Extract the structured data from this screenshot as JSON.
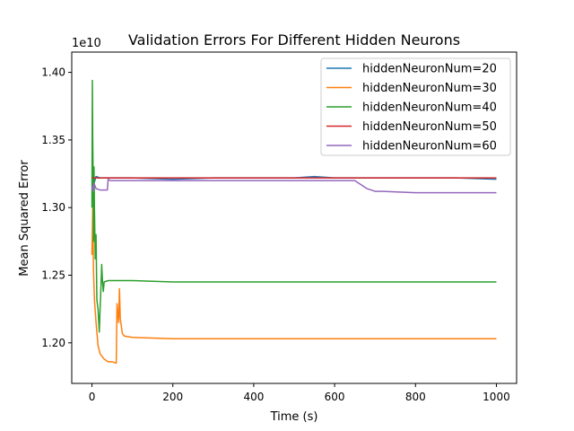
{
  "chart_data": {
    "type": "line",
    "title": "Validation Errors For Different Hidden Neurons",
    "xlabel": "Time (s)",
    "ylabel": "Mean Squared Error",
    "y_offset_label": "1e10",
    "xlim": [
      -50,
      1050
    ],
    "ylim": [
      1.17,
      1.415
    ],
    "x_ticks": [
      0,
      200,
      400,
      600,
      800,
      1000
    ],
    "x_tick_labels": [
      "0",
      "200",
      "400",
      "600",
      "800",
      "1000"
    ],
    "y_ticks": [
      1.2,
      1.25,
      1.3,
      1.35,
      1.4
    ],
    "y_tick_labels": [
      "1.20",
      "1.25",
      "1.30",
      "1.35",
      "1.40"
    ],
    "grid": false,
    "legend_position": "top-right",
    "series": [
      {
        "name": "hiddenNeuronNum=20",
        "color": "#1f77b4",
        "x": [
          0,
          5,
          10,
          20,
          40,
          100,
          200,
          300,
          400,
          500,
          550,
          600,
          700,
          800,
          900,
          1000
        ],
        "y": [
          1.322,
          1.318,
          1.323,
          1.322,
          1.322,
          1.322,
          1.321,
          1.322,
          1.322,
          1.322,
          1.323,
          1.322,
          1.322,
          1.322,
          1.322,
          1.321
        ]
      },
      {
        "name": "hiddenNeuronNum=30",
        "color": "#ff7f0e",
        "x": [
          0,
          2,
          4,
          6,
          10,
          15,
          20,
          30,
          40,
          50,
          60,
          62,
          64,
          66,
          68,
          70,
          75,
          80,
          100,
          200,
          400,
          600,
          800,
          1000
        ],
        "y": [
          1.265,
          1.3,
          1.252,
          1.232,
          1.215,
          1.198,
          1.192,
          1.188,
          1.186,
          1.186,
          1.185,
          1.229,
          1.222,
          1.215,
          1.24,
          1.218,
          1.207,
          1.205,
          1.204,
          1.203,
          1.203,
          1.203,
          1.203,
          1.203
        ]
      },
      {
        "name": "hiddenNeuronNum=40",
        "color": "#2ca02c",
        "x": [
          0,
          1,
          2,
          3,
          4,
          5,
          6,
          8,
          10,
          12,
          15,
          18,
          20,
          22,
          24,
          26,
          28,
          30,
          40,
          60,
          100,
          200,
          400,
          600,
          800,
          1000
        ],
        "y": [
          1.3,
          1.394,
          1.35,
          1.32,
          1.275,
          1.33,
          1.3,
          1.262,
          1.28,
          1.232,
          1.225,
          1.208,
          1.225,
          1.24,
          1.258,
          1.245,
          1.238,
          1.245,
          1.246,
          1.246,
          1.246,
          1.245,
          1.245,
          1.245,
          1.245,
          1.245
        ]
      },
      {
        "name": "hiddenNeuronNum=50",
        "color": "#d62728",
        "x": [
          0,
          10,
          20,
          40,
          100,
          200,
          300,
          400,
          500,
          600,
          700,
          800,
          900,
          1000
        ],
        "y": [
          1.322,
          1.322,
          1.322,
          1.322,
          1.322,
          1.322,
          1.322,
          1.322,
          1.322,
          1.322,
          1.322,
          1.322,
          1.322,
          1.322
        ]
      },
      {
        "name": "hiddenNeuronNum=60",
        "color": "#9467bd",
        "x": [
          0,
          3,
          5,
          10,
          20,
          30,
          38,
          40,
          45,
          60,
          100,
          200,
          300,
          400,
          500,
          600,
          640,
          650,
          660,
          670,
          680,
          700,
          720,
          800,
          900,
          1000
        ],
        "y": [
          1.316,
          1.312,
          1.318,
          1.314,
          1.313,
          1.313,
          1.313,
          1.321,
          1.32,
          1.32,
          1.32,
          1.32,
          1.32,
          1.32,
          1.32,
          1.32,
          1.32,
          1.32,
          1.318,
          1.316,
          1.314,
          1.312,
          1.312,
          1.311,
          1.311,
          1.311
        ]
      }
    ]
  }
}
